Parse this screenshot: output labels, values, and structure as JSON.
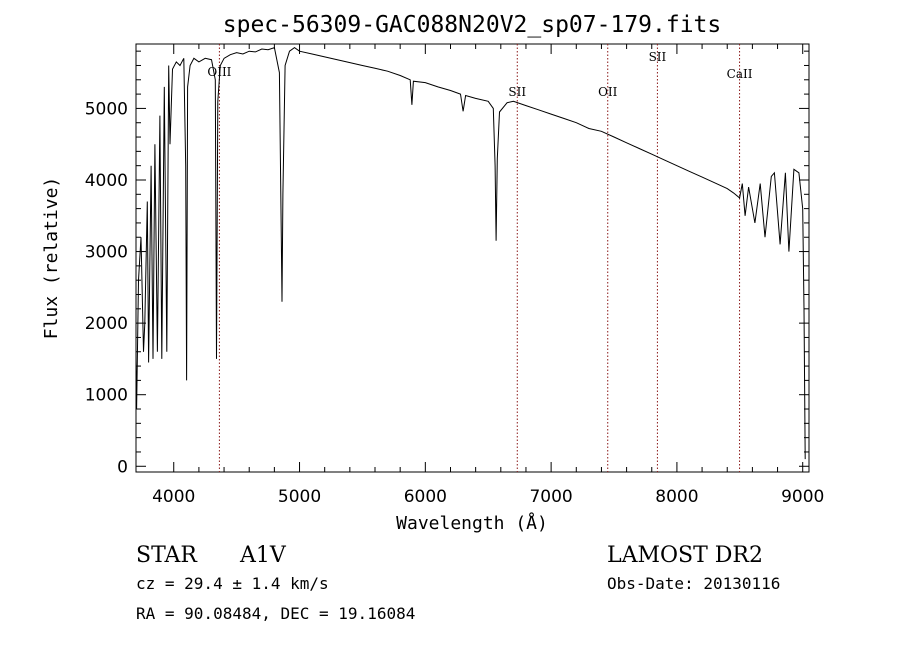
{
  "chart_data": {
    "type": "line",
    "title": "spec-56309-GAC088N20V2_sp07-179.fits",
    "xlabel": "Wavelength (Å)",
    "ylabel": "Flux (relative)",
    "xlim": [
      3700,
      9050
    ],
    "ylim": [
      -80,
      5900
    ],
    "xticks": [
      4000,
      5000,
      6000,
      7000,
      8000,
      9000
    ],
    "yticks": [
      0,
      1000,
      2000,
      3000,
      4000,
      5000
    ],
    "grid": false,
    "series": [
      {
        "x": [
          3700,
          3705,
          3720,
          3740,
          3760,
          3770,
          3790,
          3800,
          3820,
          3835,
          3850,
          3870,
          3890,
          3905,
          3925,
          3945,
          3960,
          3970,
          3990,
          4020,
          4050,
          4080,
          4095,
          4102,
          4110,
          4130,
          4160,
          4200,
          4250,
          4300,
          4330,
          4340,
          4350,
          4370,
          4400,
          4450,
          4500,
          4550,
          4600,
          4650,
          4700,
          4750,
          4800,
          4840,
          4855,
          4861,
          4868,
          4885,
          4920,
          4960,
          5000,
          5100,
          5200,
          5300,
          5400,
          5500,
          5600,
          5700,
          5800,
          5880,
          5893,
          5905,
          6000,
          6100,
          6200,
          6280,
          6300,
          6320,
          6400,
          6500,
          6540,
          6555,
          6563,
          6572,
          6590,
          6650,
          6700,
          6800,
          6900,
          7000,
          7100,
          7200,
          7300,
          7400,
          7500,
          7600,
          7700,
          7800,
          7900,
          8000,
          8100,
          8200,
          8300,
          8400,
          8450,
          8498,
          8520,
          8542,
          8570,
          8620,
          8662,
          8700,
          8750,
          8775,
          8820,
          8862,
          8890,
          8930,
          8970,
          9000,
          9010,
          9020
        ],
        "y": [
          1500,
          800,
          2600,
          3200,
          1600,
          2000,
          3700,
          1450,
          4200,
          1500,
          4500,
          1600,
          4900,
          1500,
          5300,
          1600,
          5600,
          4500,
          5550,
          5650,
          5600,
          5700,
          4200,
          1200,
          5300,
          5600,
          5700,
          5650,
          5700,
          5680,
          5400,
          1500,
          5100,
          5600,
          5700,
          5750,
          5780,
          5760,
          5800,
          5790,
          5830,
          5820,
          5850,
          5500,
          3200,
          2300,
          3800,
          5600,
          5800,
          5850,
          5800,
          5760,
          5720,
          5680,
          5640,
          5600,
          5560,
          5520,
          5460,
          5400,
          5050,
          5380,
          5360,
          5300,
          5250,
          5200,
          4960,
          5180,
          5140,
          5100,
          5000,
          4200,
          3150,
          4300,
          4950,
          5080,
          5100,
          5040,
          4980,
          4920,
          4860,
          4800,
          4720,
          4680,
          4600,
          4520,
          4440,
          4360,
          4280,
          4200,
          4120,
          4040,
          3960,
          3880,
          3820,
          3750,
          3950,
          3500,
          3900,
          3400,
          3950,
          3200,
          4050,
          4100,
          3100,
          4100,
          3000,
          4150,
          4100,
          3600,
          2200,
          100
        ]
      }
    ],
    "line_markers": [
      {
        "label": "OIII",
        "wavelength": 4363
      },
      {
        "label": "SII",
        "wavelength": 6731
      },
      {
        "label": "OII",
        "wavelength": 7450
      },
      {
        "label": "SII",
        "wavelength": 7845
      },
      {
        "label": "CaII",
        "wavelength": 8498
      }
    ]
  },
  "info": {
    "object_class": "STAR",
    "subclass": "A1V",
    "survey": "LAMOST DR2",
    "cz": "cz = 29.4 ± 1.4 km/s",
    "obs_date": "Obs-Date: 20130116",
    "coords": "RA =  90.08484, DEC =  19.16084"
  },
  "colors": {
    "line": "#000000",
    "marker": "#8b1a1a"
  }
}
